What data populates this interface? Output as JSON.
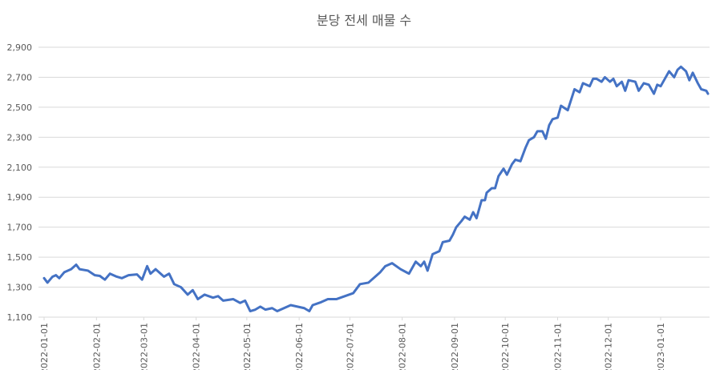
{
  "chart_data": {
    "type": "line",
    "title": "분당 전세 매물 수",
    "x": [
      "2022-01-01",
      "2022-01-03",
      "2022-01-06",
      "2022-01-08",
      "2022-01-10",
      "2022-01-13",
      "2022-01-17",
      "2022-01-20",
      "2022-01-22",
      "2022-01-27",
      "2022-01-31",
      "2022-02-03",
      "2022-02-06",
      "2022-02-09",
      "2022-02-13",
      "2022-02-16",
      "2022-02-20",
      "2022-02-25",
      "2022-02-28",
      "2022-03-03",
      "2022-03-05",
      "2022-03-08",
      "2022-03-11",
      "2022-03-13",
      "2022-03-16",
      "2022-03-19",
      "2022-03-23",
      "2022-03-27",
      "2022-03-30",
      "2022-04-02",
      "2022-04-06",
      "2022-04-11",
      "2022-04-14",
      "2022-04-17",
      "2022-04-23",
      "2022-04-27",
      "2022-04-30",
      "2022-05-03",
      "2022-05-06",
      "2022-05-09",
      "2022-05-12",
      "2022-05-16",
      "2022-05-19",
      "2022-05-23",
      "2022-05-27",
      "2022-05-31",
      "2022-06-04",
      "2022-06-07",
      "2022-06-09",
      "2022-06-14",
      "2022-06-18",
      "2022-06-23",
      "2022-06-28",
      "2022-07-03",
      "2022-07-07",
      "2022-07-12",
      "2022-07-17",
      "2022-07-19",
      "2022-07-22",
      "2022-07-26",
      "2022-07-31",
      "2022-08-05",
      "2022-08-09",
      "2022-08-12",
      "2022-08-14",
      "2022-08-16",
      "2022-08-19",
      "2022-08-23",
      "2022-08-25",
      "2022-08-29",
      "2022-08-31",
      "2022-09-02",
      "2022-09-05",
      "2022-09-07",
      "2022-09-10",
      "2022-09-12",
      "2022-09-14",
      "2022-09-17",
      "2022-09-19",
      "2022-09-20",
      "2022-09-23",
      "2022-09-25",
      "2022-09-27",
      "2022-09-30",
      "2022-10-02",
      "2022-10-05",
      "2022-10-07",
      "2022-10-10",
      "2022-10-13",
      "2022-10-15",
      "2022-10-18",
      "2022-10-20",
      "2022-10-23",
      "2022-10-25",
      "2022-10-27",
      "2022-10-29",
      "2022-11-01",
      "2022-11-03",
      "2022-11-07",
      "2022-11-09",
      "2022-11-11",
      "2022-11-14",
      "2022-11-16",
      "2022-11-20",
      "2022-11-22",
      "2022-11-24",
      "2022-11-27",
      "2022-11-29",
      "2022-12-02",
      "2022-12-04",
      "2022-12-06",
      "2022-12-09",
      "2022-12-11",
      "2022-12-13",
      "2022-12-17",
      "2022-12-19",
      "2022-12-22",
      "2022-12-25",
      "2022-12-28",
      "2022-12-30",
      "2023-01-01",
      "2023-01-04",
      "2023-01-06",
      "2023-01-09",
      "2023-01-11",
      "2023-01-13",
      "2023-01-16",
      "2023-01-18",
      "2023-01-20",
      "2023-01-23",
      "2023-01-25",
      "2023-01-28",
      "2023-01-29"
    ],
    "series": [
      {
        "name": "매물 수",
        "color": "#4472c4",
        "values": [
          1360,
          1330,
          1370,
          1380,
          1360,
          1400,
          1420,
          1450,
          1420,
          1410,
          1380,
          1375,
          1350,
          1390,
          1370,
          1360,
          1380,
          1385,
          1350,
          1440,
          1390,
          1420,
          1390,
          1370,
          1390,
          1320,
          1300,
          1250,
          1280,
          1220,
          1250,
          1230,
          1240,
          1210,
          1220,
          1195,
          1210,
          1140,
          1150,
          1170,
          1150,
          1160,
          1140,
          1160,
          1180,
          1170,
          1160,
          1140,
          1180,
          1200,
          1220,
          1220,
          1240,
          1260,
          1320,
          1330,
          1380,
          1400,
          1440,
          1460,
          1420,
          1390,
          1470,
          1440,
          1470,
          1410,
          1520,
          1540,
          1600,
          1610,
          1650,
          1700,
          1740,
          1770,
          1750,
          1800,
          1760,
          1880,
          1880,
          1930,
          1960,
          1960,
          2040,
          2090,
          2050,
          2120,
          2150,
          2140,
          2230,
          2280,
          2300,
          2340,
          2340,
          2290,
          2380,
          2420,
          2430,
          2510,
          2480,
          2550,
          2620,
          2600,
          2660,
          2640,
          2690,
          2690,
          2670,
          2700,
          2670,
          2690,
          2640,
          2670,
          2610,
          2680,
          2670,
          2610,
          2660,
          2650,
          2590,
          2650,
          2640,
          2700,
          2740,
          2700,
          2750,
          2770,
          2740,
          2680,
          2730,
          2660,
          2620,
          2610,
          2590
        ]
      }
    ],
    "xlim": [
      "2022-01-01",
      "2023-01-29"
    ],
    "xticks": [
      "2022-01-01",
      "2022-02-01",
      "2022-03-01",
      "2022-04-01",
      "2022-05-01",
      "2022-06-01",
      "2022-07-01",
      "2022-08-01",
      "2022-09-01",
      "2022-10-01",
      "2022-11-01",
      "2022-12-01",
      "2023-01-01"
    ],
    "ylim": [
      1100,
      2900
    ],
    "yticks": [
      {
        "value": 1100,
        "label": "1,100"
      },
      {
        "value": 1300,
        "label": "1,300"
      },
      {
        "value": 1500,
        "label": "1,500"
      },
      {
        "value": 1700,
        "label": "1,700"
      },
      {
        "value": 1900,
        "label": "1,900"
      },
      {
        "value": 2100,
        "label": "2,100"
      },
      {
        "value": 2300,
        "label": "2,300"
      },
      {
        "value": 2500,
        "label": "2,500"
      },
      {
        "value": 2700,
        "label": "2,700"
      },
      {
        "value": 2900,
        "label": "2,900"
      }
    ],
    "grid": true
  }
}
